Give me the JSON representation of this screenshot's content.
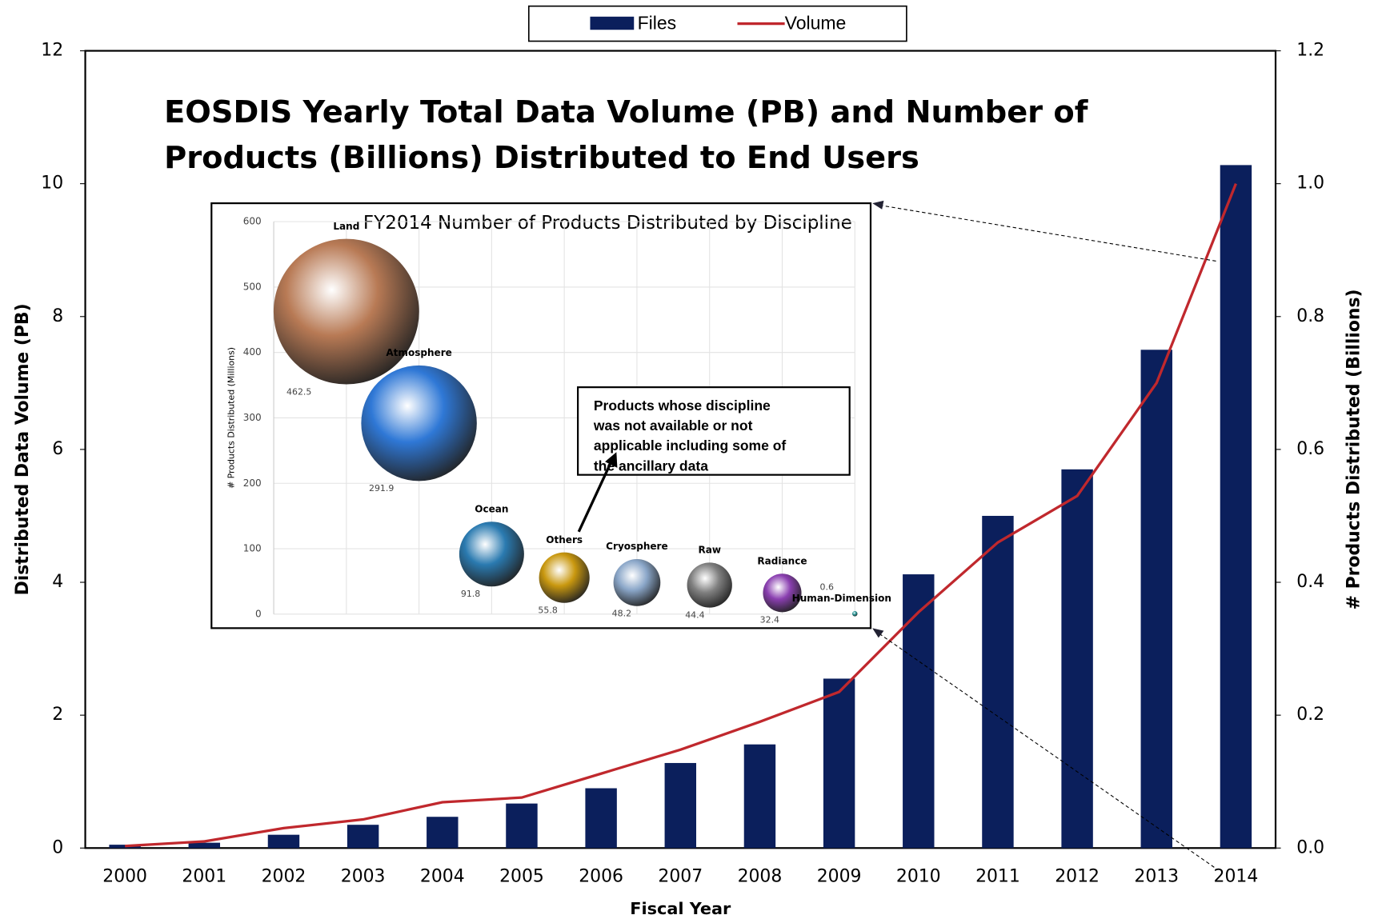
{
  "chart_data": [
    {
      "type": "bar",
      "title": [
        "EOSDIS Yearly Total Data Volume (PB) and Number of",
        "Products (Billions) Distributed to End Users"
      ],
      "xlabel": "Fiscal Year",
      "ylabel": "Distributed Data Volume (PB)",
      "y2label": "# Products Distributed   (Billions)",
      "categories": [
        "2000",
        "2001",
        "2002",
        "2003",
        "2004",
        "2005",
        "2006",
        "2007",
        "2008",
        "2009",
        "2010",
        "2011",
        "2012",
        "2013",
        "2014"
      ],
      "series": [
        {
          "name": "Files",
          "type": "bar",
          "color": "#0b1f5c",
          "values": [
            0.05,
            0.08,
            0.2,
            0.35,
            0.47,
            0.67,
            0.9,
            1.28,
            1.56,
            2.55,
            4.12,
            5.0,
            5.7,
            7.5,
            10.28
          ]
        },
        {
          "name": "Volume",
          "type": "line",
          "color": "#c0282d",
          "axis": "y2",
          "values": [
            0.003,
            0.01,
            0.03,
            0.043,
            0.069,
            0.076,
            0.112,
            0.148,
            0.19,
            0.235,
            0.355,
            0.46,
            0.53,
            0.7,
            1.0
          ]
        }
      ],
      "ylim": [
        0,
        12
      ],
      "yticks": [
        0,
        2,
        4,
        6,
        8,
        10,
        12
      ],
      "y2lim": [
        0,
        1.2
      ],
      "y2ticks": [
        {
          "value": 0,
          "label": "0.0"
        },
        0.2,
        0.4,
        0.6,
        0.8,
        {
          "value": 1,
          "label": "1.0"
        },
        1.2
      ],
      "legend": "top",
      "grid": false
    },
    {
      "type": "bubble",
      "title": "FY2014 Number of Products Distributed  by Discipline",
      "ylabel": "# Products Distributed (Millions)",
      "categories": [
        "Land",
        "Atmosphere",
        "Ocean",
        "Others",
        "Cryosphere",
        "Raw",
        "Radiance",
        "Human-Dimension"
      ],
      "values": [
        462.5,
        291.9,
        91.8,
        55.8,
        48.2,
        44.4,
        32.4,
        0.6
      ],
      "colors": [
        "#b87a55",
        "#2f78d6",
        "#2a7ab0",
        "#c9980f",
        "#8aa6c8",
        "#808080",
        "#8a3fb0",
        "#2a9a9a"
      ],
      "ylim": [
        0,
        600
      ],
      "yticks": [
        0,
        100,
        200,
        300,
        400,
        500,
        600
      ],
      "grid": true,
      "annotation": [
        "Products whose discipline",
        "was not available or not",
        "applicable including some of",
        "the ancillary data"
      ]
    }
  ]
}
